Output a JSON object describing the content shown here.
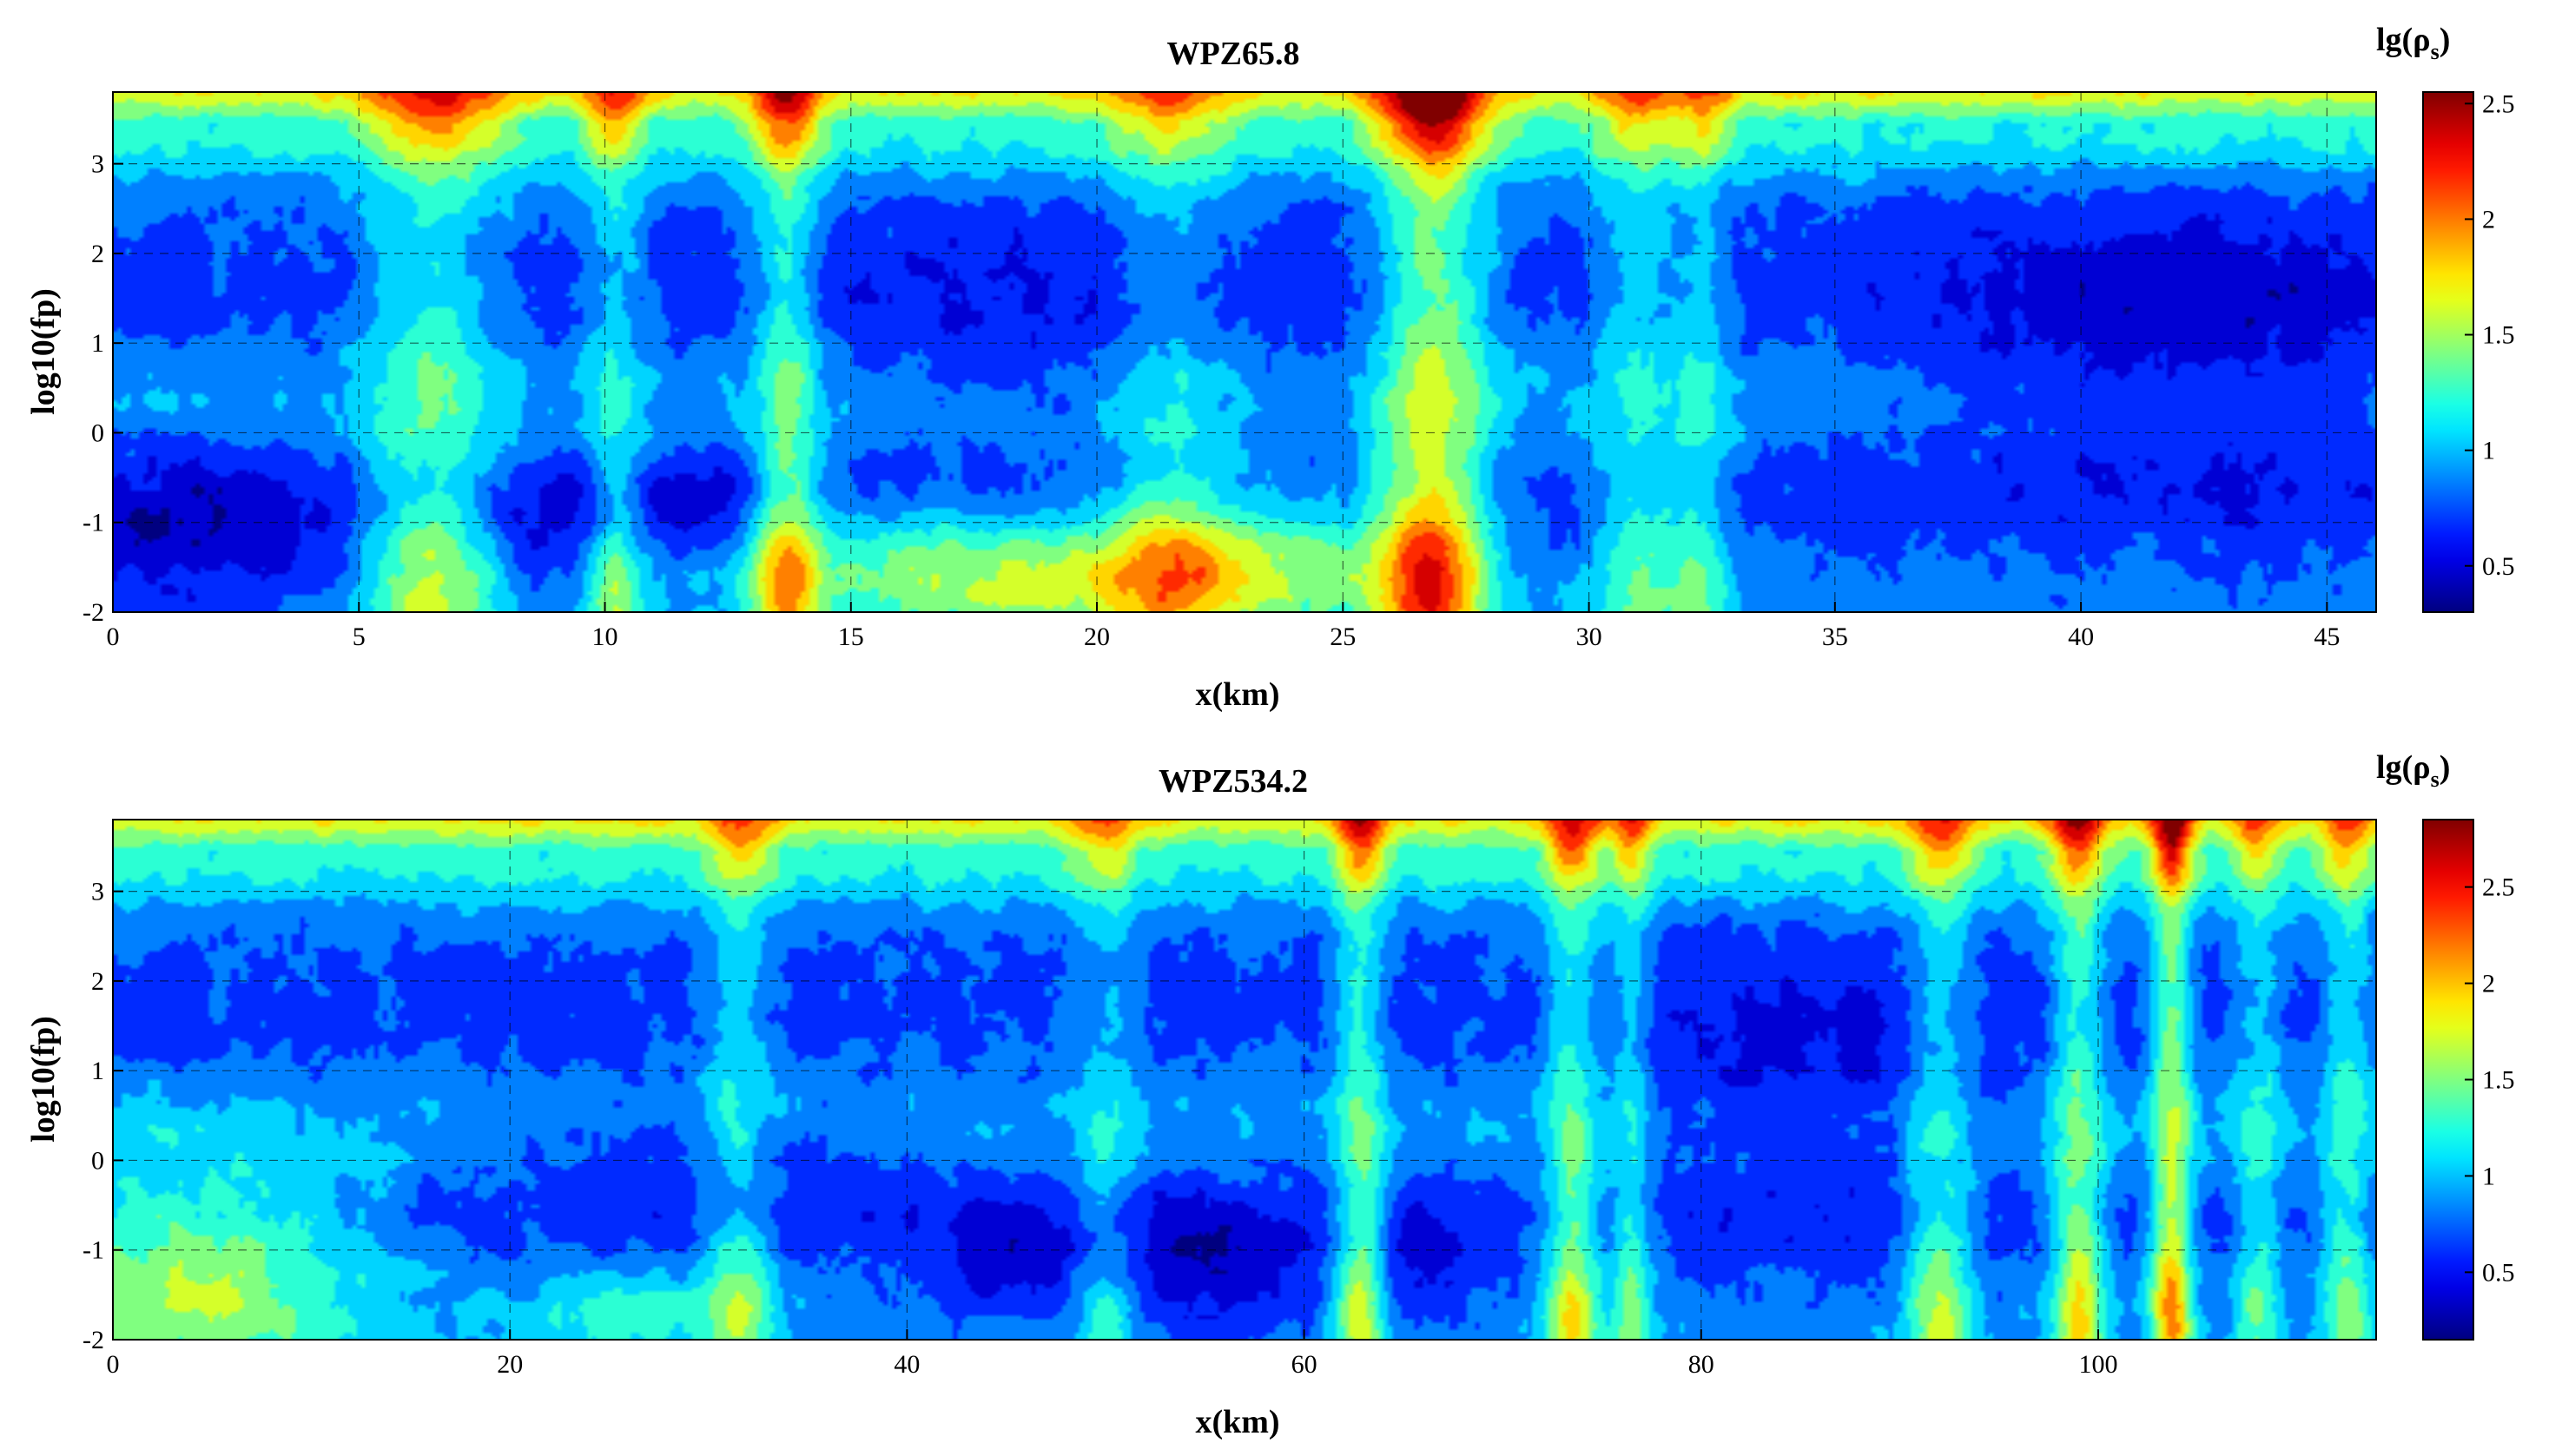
{
  "chart_data": [
    {
      "type": "heatmap",
      "title": "WPZ65.8",
      "xlabel": "x(km)",
      "ylabel": "log10(fp)",
      "xlim": [
        0,
        46
      ],
      "ylim": [
        -2,
        3.8
      ],
      "xticks": [
        0,
        5,
        10,
        15,
        20,
        25,
        30,
        35,
        40,
        45
      ],
      "yticks": [
        -2,
        -1,
        0,
        1,
        2,
        3
      ],
      "grid": true,
      "colorbar": {
        "label": "lg(ρ",
        "label_sub": "s",
        "label_close": ")",
        "range": [
          0.3,
          2.55
        ],
        "ticks": [
          0.5,
          1,
          1.5,
          2,
          2.5
        ],
        "colormap": "jet"
      },
      "features": {
        "vertical_anomalies": [
          {
            "x": 6.5,
            "width": 1.6,
            "strength": 0.5
          },
          {
            "x": 10.2,
            "width": 0.7,
            "strength": 0.4
          },
          {
            "x": 13.7,
            "width": 0.8,
            "strength": 0.6
          },
          {
            "x": 21.5,
            "width": 1.5,
            "strength": 0.35
          },
          {
            "x": 26.8,
            "width": 1.3,
            "strength": 0.85
          },
          {
            "x": 31.0,
            "width": 1.0,
            "strength": 0.35
          },
          {
            "x": 32.3,
            "width": 0.7,
            "strength": 0.3
          }
        ],
        "conductive_zones": [
          {
            "x": 1.5,
            "y": -1.2,
            "rx": 3.5,
            "ry": 0.9,
            "strength": 0.7
          },
          {
            "x": 9.0,
            "y": -1.0,
            "rx": 1.8,
            "ry": 0.7,
            "strength": 0.55
          },
          {
            "x": 12.0,
            "y": -0.8,
            "rx": 1.4,
            "ry": 0.6,
            "strength": 0.45
          },
          {
            "x": 19.0,
            "y": 1.2,
            "rx": 6.0,
            "ry": 1.3,
            "strength": 0.35
          },
          {
            "x": 42.0,
            "y": 1.0,
            "rx": 6.0,
            "ry": 1.8,
            "strength": 0.6
          }
        ],
        "resistive_zones": [
          {
            "x": 18.0,
            "y": -1.6,
            "rx": 4.5,
            "ry": 0.7,
            "strength": 0.9
          },
          {
            "x": 23.5,
            "y": -1.5,
            "rx": 3.0,
            "ry": 0.8,
            "strength": 0.7
          }
        ]
      }
    },
    {
      "type": "heatmap",
      "title": "WPZ534.2",
      "xlabel": "x(km)",
      "ylabel": "log10(fp)",
      "xlim": [
        0,
        114
      ],
      "ylim": [
        -2,
        3.8
      ],
      "xticks": [
        0,
        20,
        40,
        60,
        80,
        100
      ],
      "yticks": [
        -2,
        -1,
        0,
        1,
        2,
        3
      ],
      "grid": true,
      "colorbar": {
        "label": "lg(ρ",
        "label_sub": "s",
        "label_close": ")",
        "range": [
          0.15,
          2.85
        ],
        "ticks": [
          0.5,
          1,
          1.5,
          2,
          2.5
        ],
        "colormap": "jet"
      },
      "features": {
        "vertical_anomalies": [
          {
            "x": 31.5,
            "width": 2.0,
            "strength": 0.35
          },
          {
            "x": 50.0,
            "width": 2.0,
            "strength": 0.3
          },
          {
            "x": 62.8,
            "width": 1.5,
            "strength": 0.55
          },
          {
            "x": 73.5,
            "width": 1.6,
            "strength": 0.55
          },
          {
            "x": 76.5,
            "width": 1.2,
            "strength": 0.4
          },
          {
            "x": 92.0,
            "width": 2.0,
            "strength": 0.45
          },
          {
            "x": 99.0,
            "width": 1.6,
            "strength": 0.6
          },
          {
            "x": 103.7,
            "width": 1.2,
            "strength": 0.75
          },
          {
            "x": 108.0,
            "width": 1.5,
            "strength": 0.35
          },
          {
            "x": 112.5,
            "width": 1.5,
            "strength": 0.4
          }
        ],
        "conductive_zones": [
          {
            "x": 55.0,
            "y": -1.2,
            "rx": 6.0,
            "ry": 0.9,
            "strength": 0.7
          },
          {
            "x": 45.0,
            "y": -1.1,
            "rx": 5.0,
            "ry": 0.7,
            "strength": 0.5
          },
          {
            "x": 85.0,
            "y": 0.8,
            "rx": 10.0,
            "ry": 1.4,
            "strength": 0.5
          },
          {
            "x": 30.0,
            "y": 0.0,
            "rx": 12.0,
            "ry": 0.6,
            "strength": 0.35
          },
          {
            "x": 66.0,
            "y": -1.2,
            "rx": 2.5,
            "ry": 0.7,
            "strength": 0.5
          }
        ],
        "resistive_zones": [
          {
            "x": 4.0,
            "y": -1.3,
            "rx": 9.0,
            "ry": 1.3,
            "strength": 0.9
          },
          {
            "x": 26.0,
            "y": -1.7,
            "rx": 6.0,
            "ry": 0.5,
            "strength": 0.45
          }
        ]
      }
    }
  ]
}
